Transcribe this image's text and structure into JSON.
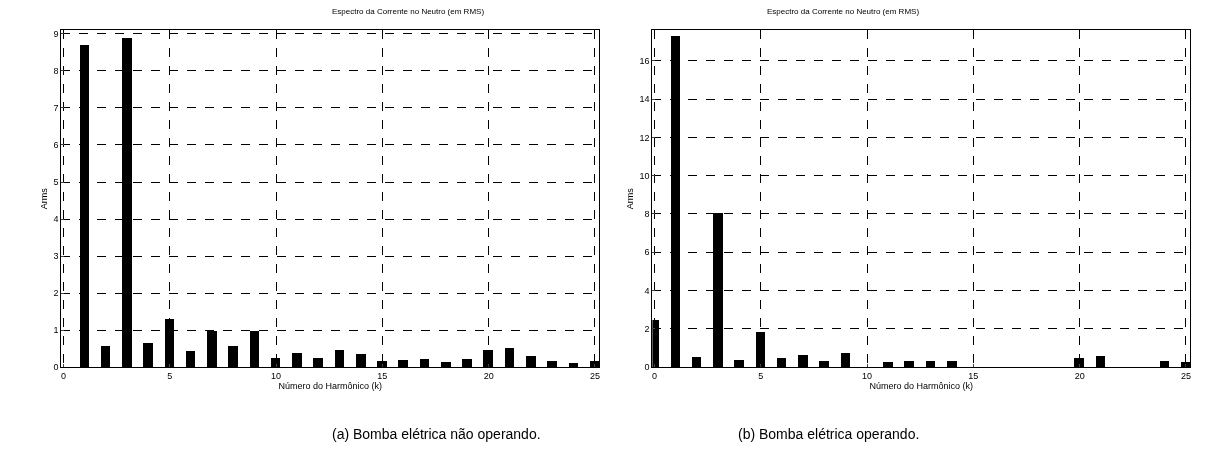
{
  "chart_data": [
    {
      "type": "bar",
      "title": "Espectro da Corrente no Neutro (em RMS)",
      "xlabel": "Número do Harmônico (k)",
      "ylabel": "Arms",
      "annotations": [
        "(a) Bomba elétrica não operando."
      ],
      "x": [
        1,
        2,
        3,
        4,
        5,
        6,
        7,
        8,
        9,
        10,
        11,
        12,
        13,
        14,
        15,
        16,
        17,
        18,
        19,
        20,
        21,
        22,
        23,
        24,
        25
      ],
      "series": [
        {
          "color": "#000000",
          "values": [
            8.7,
            0.58,
            8.88,
            0.66,
            1.3,
            0.42,
            0.97,
            0.58,
            0.97,
            0.25,
            0.39,
            0.25,
            0.45,
            0.34,
            0.17,
            0.2,
            0.22,
            0.14,
            0.22,
            0.45,
            0.5,
            0.31,
            0.17,
            0.12,
            0.17
          ]
        }
      ],
      "xlim": [
        -0.1,
        25.2
      ],
      "xticks": [
        0,
        5,
        10,
        15,
        20,
        25
      ],
      "ylim": [
        0,
        9.1
      ],
      "yticks": [
        0,
        1,
        2,
        3,
        4,
        5,
        6,
        7,
        8,
        9
      ],
      "grid": true
    },
    {
      "type": "bar",
      "title": "Espectro da Corrente no Neutro (em RMS)",
      "xlabel": "Número do Harmônico (k)",
      "ylabel": "Arms",
      "annotations": [
        "(b) Bomba elétrica operando."
      ],
      "x": [
        0,
        1,
        2,
        3,
        4,
        5,
        6,
        7,
        8,
        9,
        10,
        11,
        12,
        13,
        14,
        15,
        16,
        17,
        18,
        19,
        20,
        21,
        22,
        23,
        24,
        25
      ],
      "series": [
        {
          "color": "#000000",
          "values": [
            2.45,
            17.3,
            0.5,
            8.05,
            0.35,
            1.85,
            0.45,
            0.6,
            0.3,
            0.75,
            null,
            0.25,
            0.3,
            0.3,
            0.3,
            null,
            null,
            null,
            null,
            null,
            0.45,
            0.55,
            null,
            null,
            0.3,
            0.25
          ]
        }
      ],
      "xlim": [
        -0.1,
        25.2
      ],
      "xticks": [
        0,
        5,
        10,
        15,
        20,
        25
      ],
      "ylim": [
        0,
        17.6
      ],
      "yticks": [
        0,
        2,
        4,
        6,
        8,
        10,
        12,
        14,
        16
      ],
      "grid": true
    }
  ]
}
